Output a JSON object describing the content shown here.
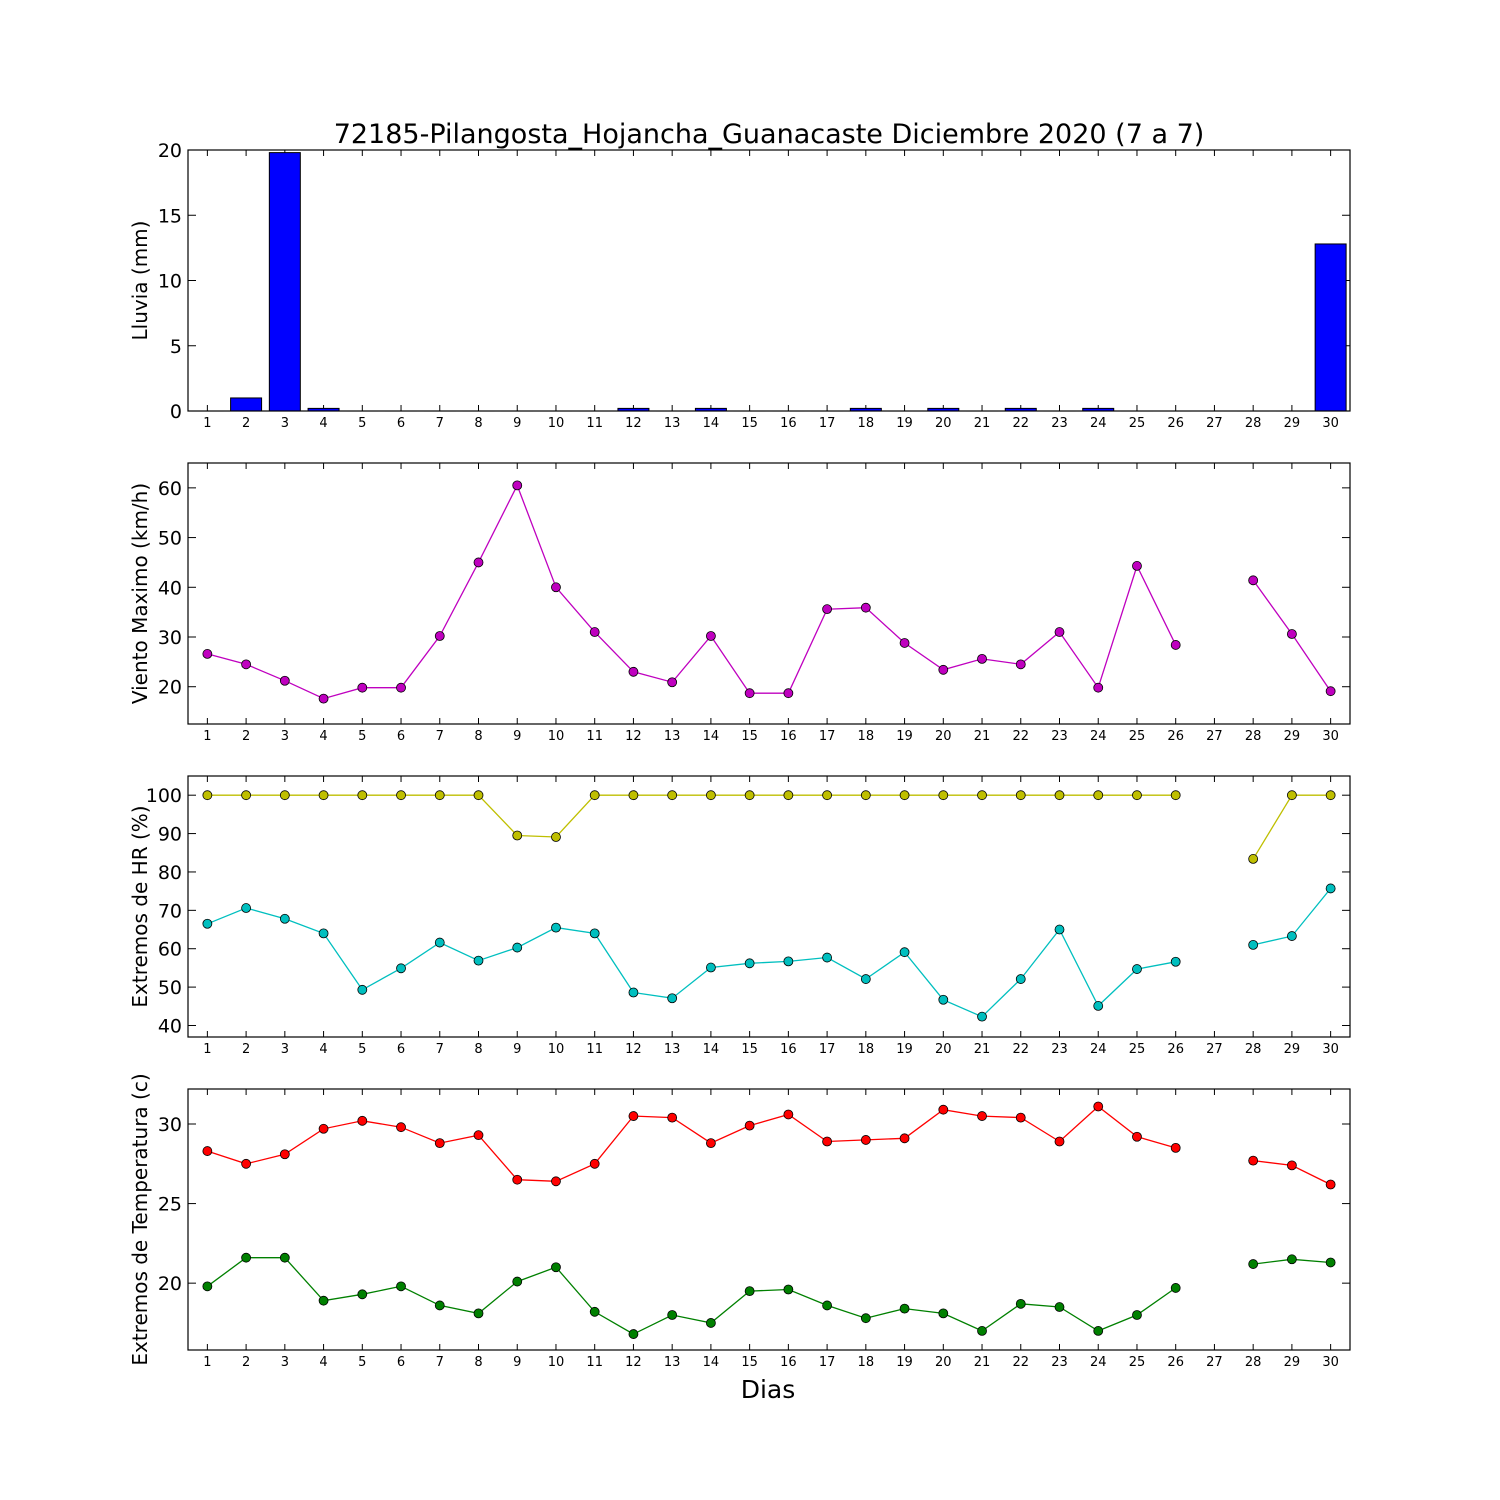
{
  "title": "72185-Pilangosta_Hojancha_Guanacaste Diciembre 2020  (7 a 7)",
  "xlabel": "Dias",
  "chart_data": [
    {
      "type": "bar",
      "ylabel": "Lluvia (mm)",
      "x": [
        1,
        2,
        3,
        4,
        5,
        6,
        7,
        8,
        9,
        10,
        11,
        12,
        13,
        14,
        15,
        16,
        17,
        18,
        19,
        20,
        21,
        22,
        23,
        24,
        25,
        26,
        27,
        28,
        29,
        30
      ],
      "xticks": [
        "1",
        "2",
        "3",
        "4",
        "5",
        "6",
        "7",
        "8",
        "9",
        "10",
        "11",
        "12",
        "13",
        "14",
        "15",
        "16",
        "17",
        "18",
        "19",
        "20",
        "21",
        "22",
        "23",
        "24",
        "25",
        "26",
        "27",
        "28",
        "29",
        "30"
      ],
      "ylim": [
        0,
        20
      ],
      "yticks": [
        "0",
        "5",
        "10",
        "15",
        "20"
      ],
      "color": "#0000ff",
      "values": [
        0,
        1.0,
        19.8,
        0.2,
        0,
        0,
        0,
        0,
        0,
        0,
        0,
        0.2,
        0,
        0.2,
        0,
        0,
        0,
        0.2,
        0,
        0.2,
        0,
        0.2,
        0,
        0.2,
        0,
        0,
        null,
        0,
        0,
        12.8
      ]
    },
    {
      "type": "line",
      "ylabel": "Viento Maximo (km/h)",
      "x": [
        1,
        2,
        3,
        4,
        5,
        6,
        7,
        8,
        9,
        10,
        11,
        12,
        13,
        14,
        15,
        16,
        17,
        18,
        19,
        20,
        21,
        22,
        23,
        24,
        25,
        26,
        27,
        28,
        29,
        30
      ],
      "xticks": [
        "1",
        "2",
        "3",
        "4",
        "5",
        "6",
        "7",
        "8",
        "9",
        "10",
        "11",
        "12",
        "13",
        "14",
        "15",
        "16",
        "17",
        "18",
        "19",
        "20",
        "21",
        "22",
        "23",
        "24",
        "25",
        "26",
        "27",
        "28",
        "29",
        "30"
      ],
      "ylim": [
        12.5,
        65
      ],
      "yticks": [
        "20",
        "30",
        "40",
        "50",
        "60"
      ],
      "series": [
        {
          "color": "#bf00bf",
          "values": [
            26.6,
            24.5,
            21.2,
            17.6,
            19.8,
            19.8,
            30.2,
            45.0,
            60.5,
            40.0,
            31.0,
            23.0,
            20.9,
            30.2,
            18.7,
            18.7,
            35.6,
            35.9,
            28.8,
            23.4,
            25.6,
            24.5,
            31.0,
            19.8,
            44.3,
            28.4,
            null,
            41.4,
            30.6,
            19.1
          ]
        }
      ]
    },
    {
      "type": "line",
      "ylabel": "Extremos de HR (%)",
      "x": [
        1,
        2,
        3,
        4,
        5,
        6,
        7,
        8,
        9,
        10,
        11,
        12,
        13,
        14,
        15,
        16,
        17,
        18,
        19,
        20,
        21,
        22,
        23,
        24,
        25,
        26,
        27,
        28,
        29,
        30
      ],
      "xticks": [
        "1",
        "2",
        "3",
        "4",
        "5",
        "6",
        "7",
        "8",
        "9",
        "10",
        "11",
        "12",
        "13",
        "14",
        "15",
        "16",
        "17",
        "18",
        "19",
        "20",
        "21",
        "22",
        "23",
        "24",
        "25",
        "26",
        "27",
        "28",
        "29",
        "30"
      ],
      "ylim": [
        37,
        105
      ],
      "yticks": [
        "40",
        "50",
        "60",
        "70",
        "80",
        "90",
        "100"
      ],
      "series": [
        {
          "color": "#bfbf00",
          "values": [
            100,
            100,
            100,
            100,
            100,
            100,
            100,
            100,
            89.5,
            89.1,
            100,
            100,
            100,
            100,
            100,
            100,
            100,
            100,
            100,
            100,
            100,
            100,
            100,
            100,
            100,
            100,
            null,
            83.4,
            100,
            100
          ]
        },
        {
          "color": "#00bfbf",
          "values": [
            66.5,
            70.6,
            67.8,
            64.0,
            49.3,
            54.9,
            61.6,
            56.9,
            60.3,
            65.5,
            64.0,
            48.6,
            47.1,
            55.1,
            56.2,
            56.7,
            57.7,
            52.1,
            59.1,
            46.7,
            42.3,
            52.1,
            65.0,
            45.1,
            54.7,
            56.6,
            null,
            61.0,
            63.3,
            75.7
          ]
        }
      ]
    },
    {
      "type": "line",
      "ylabel": "Extremos de Temperatura (c)",
      "x": [
        1,
        2,
        3,
        4,
        5,
        6,
        7,
        8,
        9,
        10,
        11,
        12,
        13,
        14,
        15,
        16,
        17,
        18,
        19,
        20,
        21,
        22,
        23,
        24,
        25,
        26,
        27,
        28,
        29,
        30
      ],
      "xticks": [
        "1",
        "2",
        "3",
        "4",
        "5",
        "6",
        "7",
        "8",
        "9",
        "10",
        "11",
        "12",
        "13",
        "14",
        "15",
        "16",
        "17",
        "18",
        "19",
        "20",
        "21",
        "22",
        "23",
        "24",
        "25",
        "26",
        "27",
        "28",
        "29",
        "30"
      ],
      "ylim": [
        15.8,
        32.2
      ],
      "yticks": [
        "20",
        "25",
        "30"
      ],
      "series": [
        {
          "color": "#ff0000",
          "values": [
            28.3,
            27.5,
            28.1,
            29.7,
            30.2,
            29.8,
            28.8,
            29.3,
            26.5,
            26.4,
            27.5,
            30.5,
            30.4,
            28.8,
            29.9,
            30.6,
            28.9,
            29.0,
            29.1,
            30.9,
            30.5,
            30.4,
            28.9,
            31.1,
            29.2,
            28.5,
            null,
            27.7,
            27.4,
            26.2
          ]
        },
        {
          "color": "#008000",
          "values": [
            19.8,
            21.6,
            21.6,
            18.9,
            19.3,
            19.8,
            18.6,
            18.1,
            20.1,
            21.0,
            18.2,
            16.8,
            18.0,
            17.5,
            19.5,
            19.6,
            18.6,
            17.8,
            18.4,
            18.1,
            17.0,
            18.7,
            18.5,
            17.0,
            18.0,
            19.7,
            null,
            21.2,
            21.5,
            21.3
          ]
        }
      ]
    }
  ]
}
